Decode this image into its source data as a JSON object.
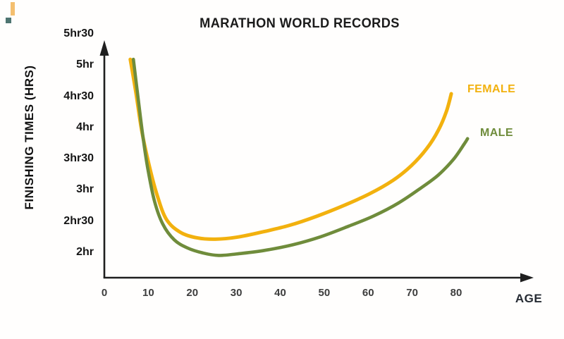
{
  "chart_data": {
    "type": "line",
    "title": "MARATHON WORLD RECORDS",
    "xlabel": "AGE",
    "ylabel": "FINISHING TIMES (HRS)",
    "x_ticks": [
      0,
      10,
      20,
      30,
      40,
      50,
      60,
      70,
      80
    ],
    "y_ticks": [
      {
        "label": "5hr30",
        "hours": 5.5
      },
      {
        "label": "5hr",
        "hours": 5.0
      },
      {
        "label": "4hr30",
        "hours": 4.5
      },
      {
        "label": "4hr",
        "hours": 4.0
      },
      {
        "label": "3hr30",
        "hours": 3.5
      },
      {
        "label": "3hr",
        "hours": 3.0
      },
      {
        "label": "2hr30",
        "hours": 2.5
      },
      {
        "label": "2hr",
        "hours": 2.0
      }
    ],
    "xlim": [
      0,
      97
    ],
    "ylim_hours": [
      1.75,
      5.6
    ],
    "grid": false,
    "legend_position": "right-of-curve-ends",
    "series": [
      {
        "name": "FEMALE",
        "color": "#F2B10E",
        "ages": [
          5.9,
          7.2,
          8.5,
          10.1,
          11.9,
          14.1,
          17.3,
          21.2,
          25.2,
          30.0,
          35.6,
          42.0,
          48.4,
          54.8,
          60.4,
          65.6,
          69.7,
          73.3,
          76.0,
          77.8,
          78.9
        ],
        "hours": [
          5.09,
          4.55,
          3.95,
          3.42,
          2.94,
          2.53,
          2.32,
          2.23,
          2.21,
          2.24,
          2.32,
          2.43,
          2.58,
          2.76,
          2.94,
          3.15,
          3.38,
          3.66,
          3.96,
          4.26,
          4.54
        ]
      },
      {
        "name": "MALE",
        "color": "#6F8C3B",
        "ages": [
          6.6,
          7.7,
          8.8,
          9.9,
          11.4,
          13.3,
          15.9,
          18.9,
          22.4,
          26.0,
          30.8,
          36.4,
          42.8,
          49.2,
          55.6,
          61.2,
          66.9,
          72.0,
          76.0,
          79.4,
          81.8,
          82.6
        ],
        "hours": [
          5.09,
          4.46,
          3.84,
          3.33,
          2.82,
          2.45,
          2.2,
          2.07,
          1.99,
          1.95,
          1.98,
          2.03,
          2.12,
          2.25,
          2.42,
          2.58,
          2.79,
          3.03,
          3.24,
          3.49,
          3.73,
          3.82
        ]
      }
    ]
  },
  "colors": {
    "axis": "#1f1f1f",
    "title": "#1b1b1b",
    "x_tick_label": "#3d3d3d",
    "y_tick_label": "#141414"
  },
  "decor": {
    "logo_bar_color": "#F0A93F",
    "logo_square_color": "#2F5D58"
  }
}
